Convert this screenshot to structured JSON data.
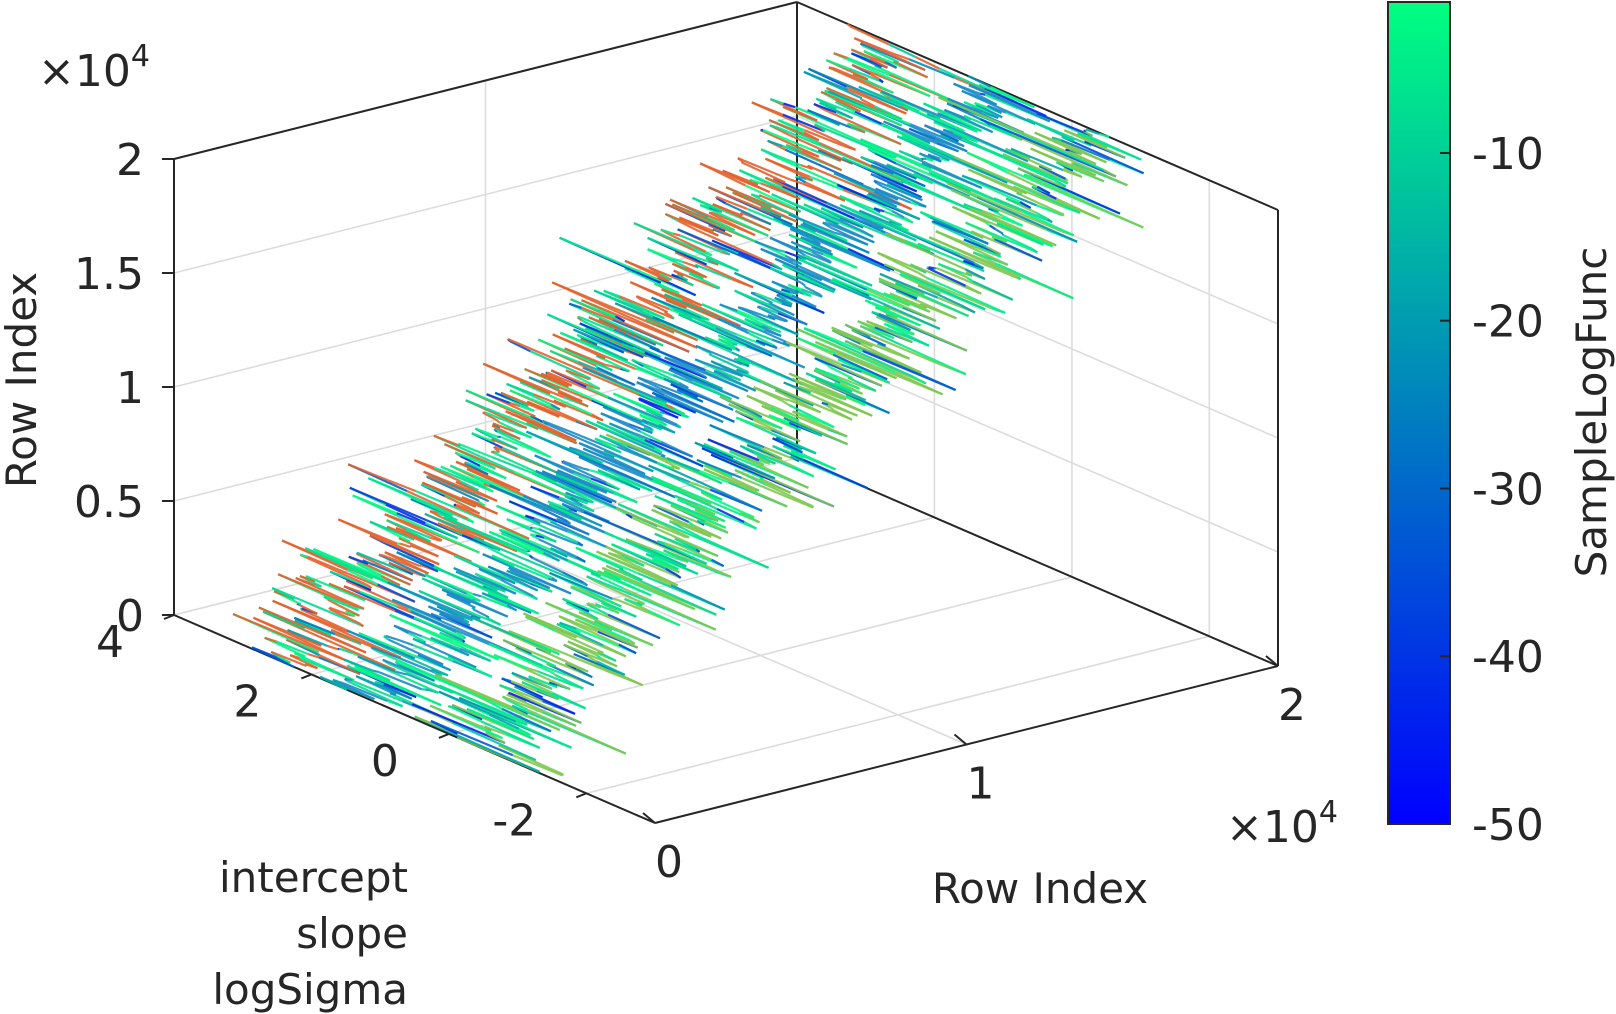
{
  "chart_data": {
    "type": "scatter",
    "plot_style": "3-D scatter (plot3) of MCMC samples colored by log-likelihood",
    "colormap": "winter",
    "grid": true,
    "x_axis": {
      "label": "Row Index",
      "range": [
        0,
        20000
      ],
      "tick_labels": [
        "0",
        "1",
        "2"
      ],
      "tick_values": [
        0,
        10000,
        20000
      ],
      "multiplier": "×10",
      "multiplier_exp": "4"
    },
    "y_axis": {
      "label_lines": [
        "intercept",
        "slope",
        "logSigma"
      ],
      "range": [
        -3,
        4
      ],
      "tick_labels": [
        "4",
        "2",
        "0",
        "-2"
      ],
      "tick_values": [
        4,
        2,
        0,
        -2
      ]
    },
    "z_axis": {
      "label": "Row Index",
      "range": [
        0,
        20000
      ],
      "tick_labels": [
        "0",
        "0.5",
        "1",
        "1.5",
        "2"
      ],
      "tick_values": [
        0,
        5000,
        10000,
        15000,
        20000
      ],
      "multiplier": "×10",
      "multiplier_exp": "4"
    },
    "colorbar": {
      "label": "SampleLogFunc",
      "range": [
        -50,
        -1
      ],
      "tick_labels": [
        "-10",
        "-20",
        "-30",
        "-40",
        "-50"
      ],
      "tick_values": [
        -10,
        -20,
        -30,
        -40,
        -50
      ],
      "colors": [
        "#0000ff",
        "#00ff80"
      ]
    },
    "series": [
      {
        "name": "intercept",
        "y_mean": 2.4,
        "y_spread": 0.5,
        "color": "#e2622d"
      },
      {
        "name": "slope",
        "y_mean": 1.1,
        "y_spread": 0.45,
        "color": "#1a8cc8"
      },
      {
        "name": "logSigma",
        "y_mean": -0.3,
        "y_spread": 0.5,
        "color": "#7ec850"
      }
    ],
    "row_index_range": [
      0,
      20000
    ]
  }
}
